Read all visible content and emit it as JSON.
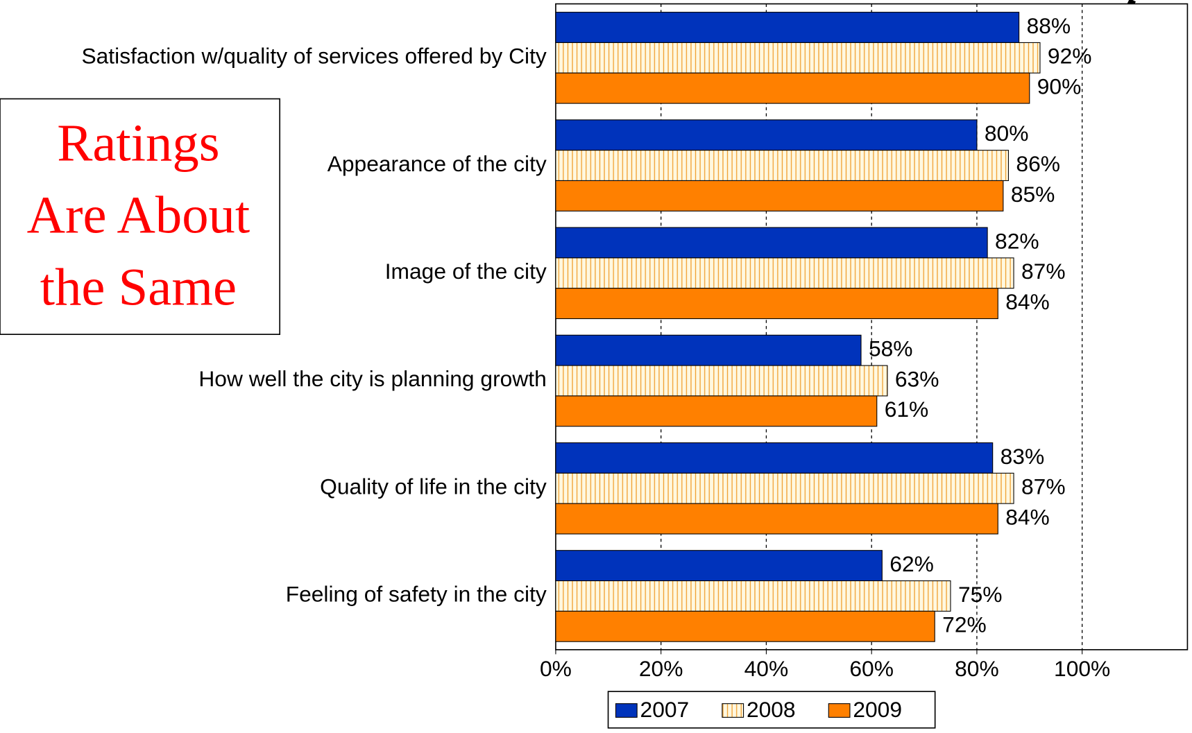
{
  "chart_data": {
    "type": "bar",
    "orientation": "horizontal",
    "categories": [
      "Satisfaction w/quality of services offered by City",
      "Appearance of the city",
      "Image of the city",
      "How well the city is planning growth",
      "Quality of life in the city",
      "Feeling of safety in the city"
    ],
    "series": [
      {
        "name": "2007",
        "color": "#0033bb",
        "values": [
          88,
          80,
          82,
          58,
          83,
          62
        ],
        "value_labels": [
          "88%",
          "80%",
          "82%",
          "58%",
          "83%",
          "62%"
        ]
      },
      {
        "name": "2008",
        "color": "#fff8e0",
        "pattern_color": "#f0a030",
        "values": [
          92,
          86,
          87,
          63,
          87,
          75
        ],
        "value_labels": [
          "92%",
          "86%",
          "87%",
          "63%",
          "87%",
          "75%"
        ]
      },
      {
        "name": "2009",
        "color": "#ff8000",
        "values": [
          90,
          85,
          84,
          61,
          84,
          72
        ],
        "value_labels": [
          "90%",
          "85%",
          "84%",
          "61%",
          "84%",
          "72%"
        ]
      }
    ],
    "xlim": [
      0,
      120
    ],
    "xticks": [
      {
        "value": 0,
        "label": "0%"
      },
      {
        "value": 20,
        "label": "20%"
      },
      {
        "value": 40,
        "label": "40%"
      },
      {
        "value": 60,
        "label": "60%"
      },
      {
        "value": 80,
        "label": "80%"
      },
      {
        "value": 100,
        "label": "100%"
      }
    ],
    "grid": true,
    "legend": "bottom",
    "annotation": [
      "Ratings",
      "Are About",
      "the Same"
    ]
  }
}
